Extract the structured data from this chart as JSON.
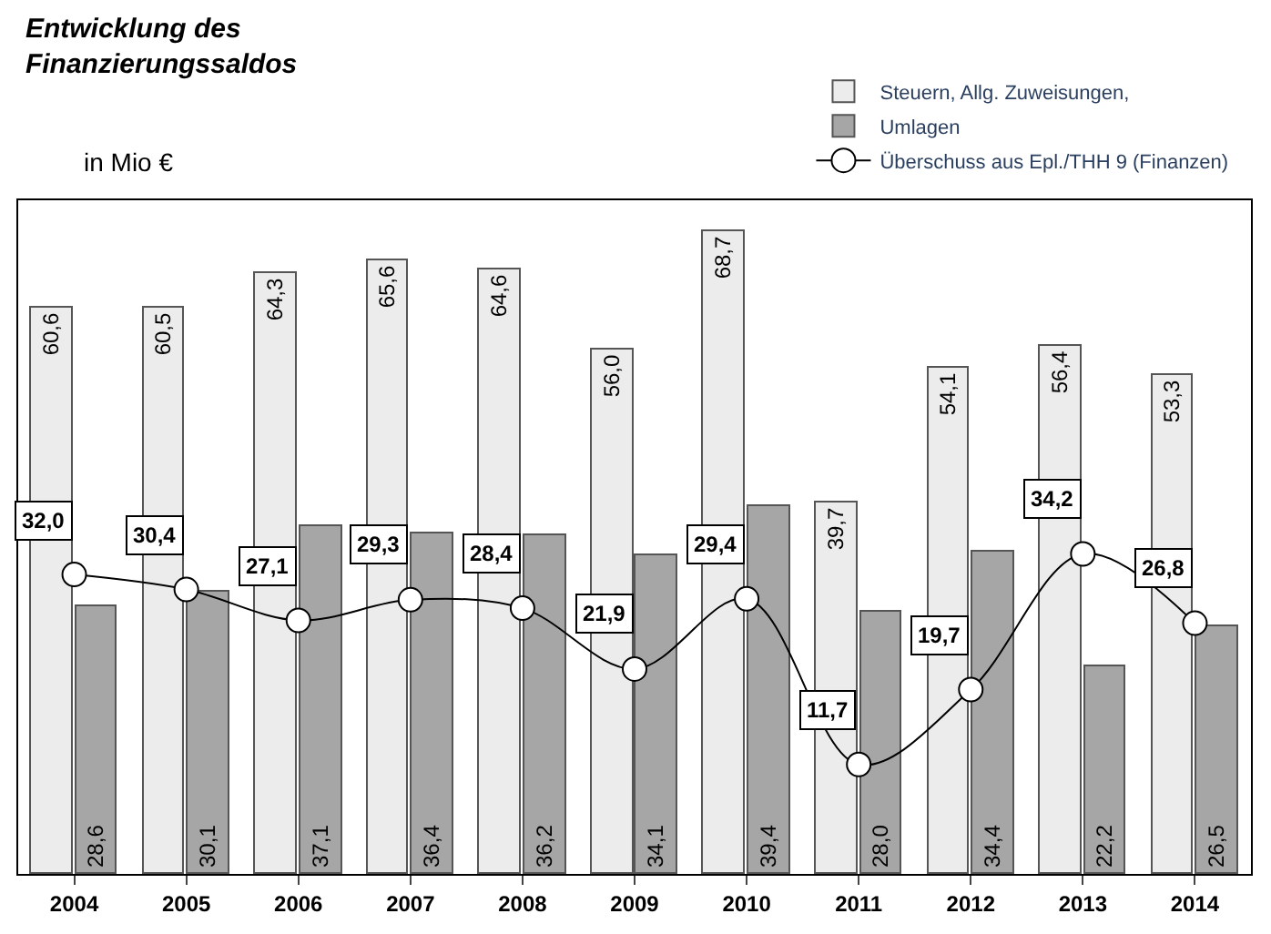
{
  "chart_data": {
    "type": "bar",
    "title": "Entwicklung des Finanzierungssaldos",
    "subtitle": "in Mio €",
    "categories": [
      "2004",
      "2005",
      "2006",
      "2007",
      "2008",
      "2009",
      "2010",
      "2011",
      "2012",
      "2013",
      "2014"
    ],
    "ylim": [
      0,
      72
    ],
    "legend": "top right",
    "tick_labels": "x",
    "series": [
      {
        "name": "Steuern, Allg. Zuweisungen,",
        "color": "#ececec",
        "values": [
          60.6,
          60.5,
          64.3,
          65.6,
          64.6,
          56.0,
          68.7,
          39.7,
          54.1,
          56.4,
          53.3
        ],
        "value_labels": [
          "60,6",
          "60,5",
          "64,3",
          "65,6",
          "64,6",
          "56,0",
          "68,7",
          "39,7",
          "54,1",
          "56,4",
          "53,3"
        ]
      },
      {
        "name": "Umlagen",
        "color": "#a6a6a6",
        "values": [
          28.6,
          30.1,
          37.1,
          36.4,
          36.2,
          34.1,
          39.4,
          28.0,
          34.4,
          22.2,
          26.5
        ],
        "value_labels": [
          "28,6",
          "30,1",
          "37,1",
          "36,4",
          "36,2",
          "34,1",
          "39,4",
          "28,0",
          "34,4",
          "22,2",
          "26,5"
        ]
      },
      {
        "name": "Überschuss aus Epl./THH 9 (Finanzen)",
        "type": "line",
        "color": "#000000",
        "marker": "circle",
        "line_style": "solid",
        "values": [
          32.0,
          30.4,
          27.1,
          29.3,
          28.4,
          21.9,
          29.4,
          11.7,
          19.7,
          34.2,
          26.8
        ],
        "value_labels": [
          "32,0",
          "30,4",
          "27,1",
          "29,3",
          "28,4",
          "21,9",
          "29,4",
          "11,7",
          "19,7",
          "34,2",
          "26,8"
        ]
      }
    ]
  }
}
